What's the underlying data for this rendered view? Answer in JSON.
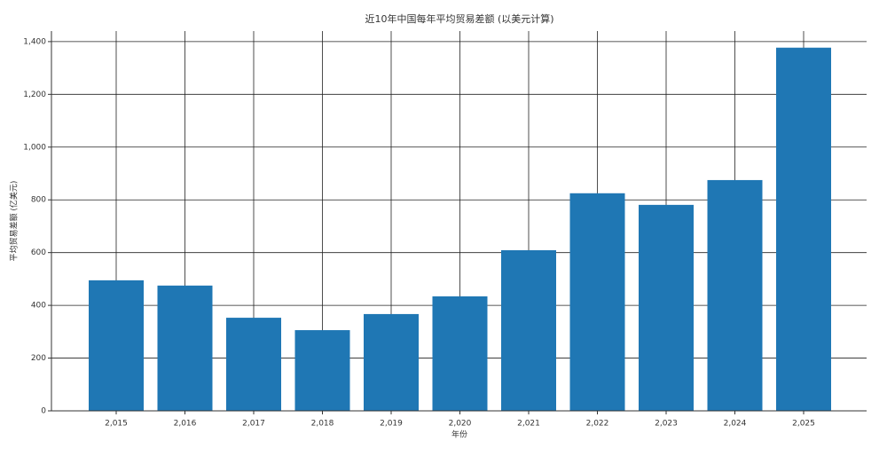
{
  "chart_data": {
    "type": "bar",
    "title": "近10年中国每年平均贸易差额 (以美元计算)",
    "x_label": "年份",
    "y_label": "平均贸易差额 (亿美元)",
    "categories": [
      "2,015",
      "2,016",
      "2,017",
      "2,018",
      "2,019",
      "2,020",
      "2,021",
      "2,022",
      "2,023",
      "2,024",
      "2,025"
    ],
    "values": [
      495,
      475,
      353,
      306,
      367,
      434,
      609,
      825,
      781,
      875,
      1377
    ],
    "color": "#1f77b4",
    "ylim": [
      0,
      1440
    ],
    "yticks": [
      0,
      200,
      400,
      600,
      800,
      {
        "value": 1000,
        "label": "1,000"
      },
      {
        "value": 1200,
        "label": "1,200"
      },
      {
        "value": 1400,
        "label": "1,400"
      }
    ],
    "grid": true
  }
}
